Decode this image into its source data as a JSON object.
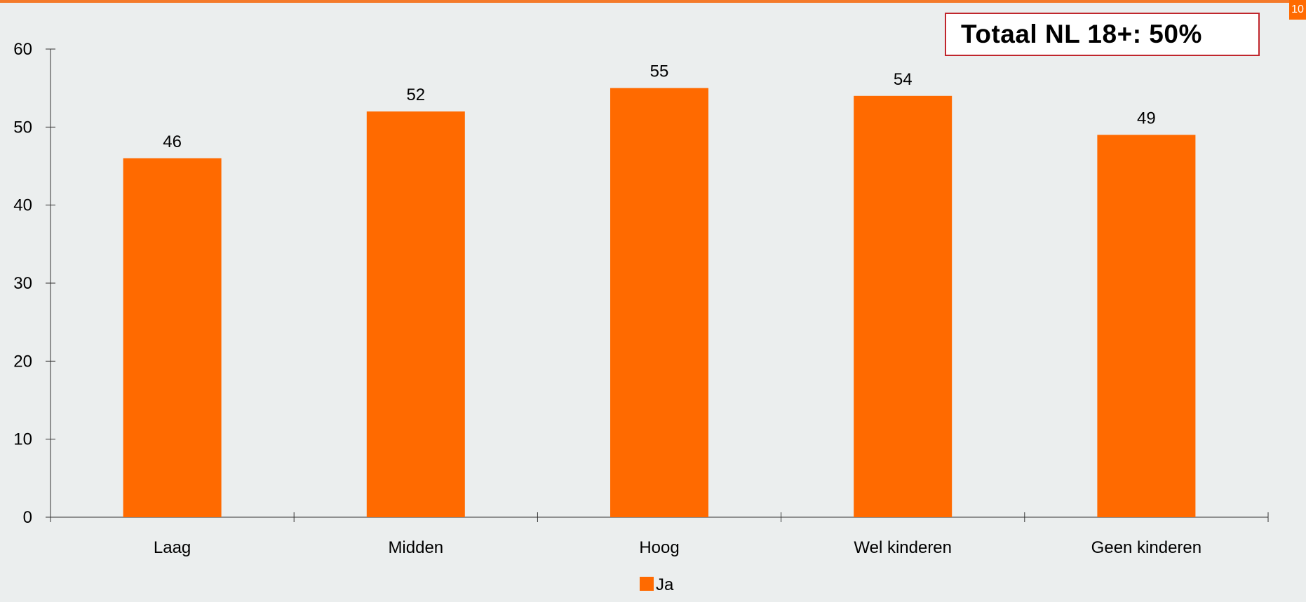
{
  "page_number": "10",
  "total_label": "Totaal NL 18+: 50%",
  "colors": {
    "bar": "#ff6a00",
    "background": "#ebeeee",
    "axis": "#333333",
    "total_border": "#c0262c"
  },
  "chart_data": {
    "type": "bar",
    "categories": [
      "Laag",
      "Midden",
      "Hoog",
      "Wel kinderen",
      "Geen kinderen"
    ],
    "series": [
      {
        "name": "Ja",
        "values": [
          46,
          52,
          55,
          54,
          49
        ]
      }
    ],
    "value_labels": [
      "46",
      "52",
      "55",
      "54",
      "49"
    ],
    "ylim": [
      0,
      60
    ],
    "yticks": [
      0,
      10,
      20,
      30,
      40,
      50,
      60
    ],
    "legend_position": "bottom-center",
    "grid": false
  }
}
